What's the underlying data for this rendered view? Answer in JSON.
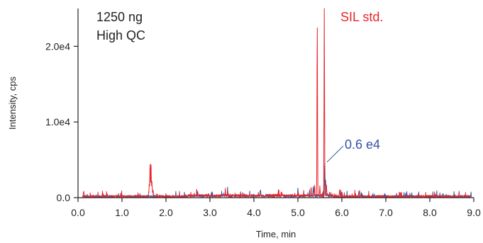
{
  "chart_data": {
    "type": "line",
    "title": "",
    "xlabel": "Time, min",
    "ylabel": "Intensity, cps",
    "xlim": [
      0.0,
      9.0
    ],
    "ylim": [
      0,
      25000
    ],
    "x_ticks": [
      0.0,
      1.0,
      2.0,
      3.0,
      4.0,
      5.0,
      6.0,
      7.0,
      8.0,
      9.0
    ],
    "x_tick_labels": [
      "0.0",
      "1.0",
      "2.0",
      "3.0",
      "4.0",
      "5.0",
      "6.0",
      "7.0",
      "8.0",
      "9.0"
    ],
    "y_ticks": [
      0,
      10000,
      20000
    ],
    "y_tick_labels": [
      "0.0",
      "1.0e4",
      "2.0e4"
    ],
    "grid": false,
    "colors": {
      "red": "#e8262b",
      "blue": "#3452a4",
      "axis": "#222222"
    },
    "annotations": {
      "sample_line1": "1250 ng",
      "sample_line2": "High QC",
      "red_label": "SIL std.",
      "blue_label": "0.6 e4"
    },
    "series": [
      {
        "color": "#e8262b",
        "peaks": [
          {
            "x": 0.13,
            "y": 800
          },
          {
            "x": 1.62,
            "y": 1800
          },
          {
            "x": 1.64,
            "y": 4500
          },
          {
            "x": 1.66,
            "y": 4200
          },
          {
            "x": 1.68,
            "y": 2000
          },
          {
            "x": 1.7,
            "y": 700
          },
          {
            "x": 2.7,
            "y": 900
          },
          {
            "x": 3.35,
            "y": 900
          },
          {
            "x": 5.3,
            "y": 1200
          },
          {
            "x": 5.38,
            "y": 1500
          },
          {
            "x": 5.44,
            "y": 23000
          },
          {
            "x": 5.5,
            "y": 1200
          },
          {
            "x": 5.6,
            "y": 25000
          },
          {
            "x": 5.65,
            "y": 1500
          },
          {
            "x": 5.95,
            "y": 1000
          },
          {
            "x": 6.4,
            "y": 800
          }
        ]
      },
      {
        "color": "#3452a4",
        "peaks": [
          {
            "x": 2.72,
            "y": 700
          },
          {
            "x": 3.4,
            "y": 700
          },
          {
            "x": 4.15,
            "y": 700
          },
          {
            "x": 5.0,
            "y": 900
          },
          {
            "x": 5.35,
            "y": 1400
          },
          {
            "x": 5.61,
            "y": 4800
          },
          {
            "x": 5.63,
            "y": 2000
          },
          {
            "x": 6.0,
            "y": 600
          },
          {
            "x": 8.3,
            "y": 500
          }
        ]
      }
    ]
  }
}
